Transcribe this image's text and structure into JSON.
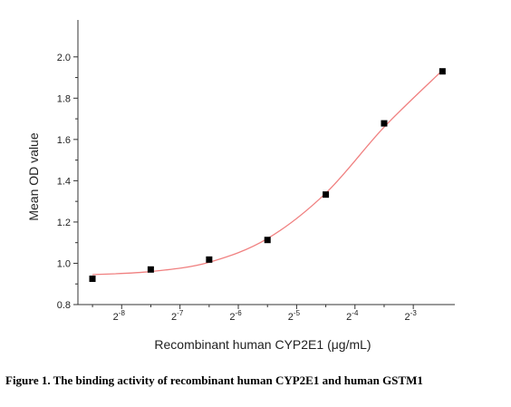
{
  "chart_data": {
    "type": "scatter",
    "xlabel": "Recombinant human CYP2E1 (μg/mL)",
    "ylabel": "Mean OD value",
    "x_scale": "log2",
    "xlim_exp": [
      -8.75,
      -2.35
    ],
    "ylim": [
      0.8,
      2.1
    ],
    "x_ticks": [
      {
        "base": "2",
        "exp": "-8",
        "pow": -8
      },
      {
        "base": "2",
        "exp": "-7",
        "pow": -7
      },
      {
        "base": "2",
        "exp": "-6",
        "pow": -6
      },
      {
        "base": "2",
        "exp": "-5",
        "pow": -5
      },
      {
        "base": "2",
        "exp": "-4",
        "pow": -4
      },
      {
        "base": "2",
        "exp": "-3",
        "pow": -3
      }
    ],
    "y_ticks": [
      "0.8",
      "1.0",
      "1.2",
      "1.4",
      "1.6",
      "1.8",
      "2.0"
    ],
    "grid": false,
    "series": [
      {
        "marker": "square",
        "color": "#000000",
        "points": [
          {
            "x": 0.00276,
            "y": 0.925
          },
          {
            "x": 0.00552,
            "y": 0.97
          },
          {
            "x": 0.01105,
            "y": 1.018
          },
          {
            "x": 0.0221,
            "y": 1.113
          },
          {
            "x": 0.04419,
            "y": 1.333
          },
          {
            "x": 0.08839,
            "y": 1.678
          },
          {
            "x": 0.17678,
            "y": 1.93
          }
        ]
      }
    ],
    "fit": {
      "type": "sigmoidal",
      "color": "#f08080",
      "points": [
        {
          "x": 0.00276,
          "y": 0.945
        },
        {
          "x": 0.00552,
          "y": 0.96
        },
        {
          "x": 0.01105,
          "y": 1.005
        },
        {
          "x": 0.0221,
          "y": 1.12
        },
        {
          "x": 0.04419,
          "y": 1.34
        },
        {
          "x": 0.08839,
          "y": 1.66
        },
        {
          "x": 0.17678,
          "y": 1.935
        }
      ]
    }
  },
  "caption": "Figure 1. The binding activity of recombinant human CYP2E1 and human GSTM1"
}
